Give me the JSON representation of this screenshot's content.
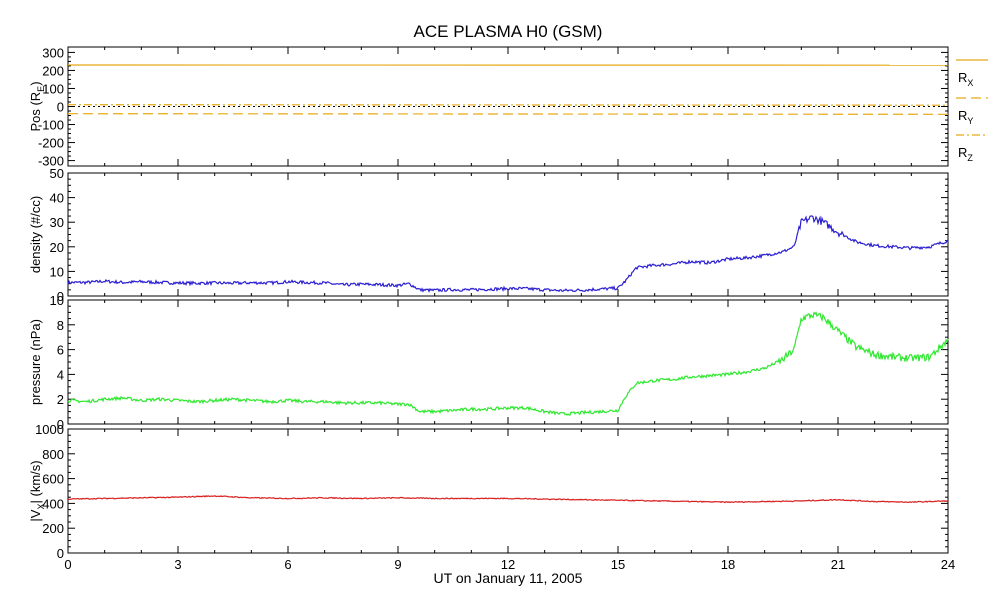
{
  "title": "ACE PLASMA H0 (GSM)",
  "x_axis": {
    "label": "UT on January 11, 2005",
    "ticks": [
      0,
      3,
      6,
      9,
      12,
      15,
      18,
      21,
      24
    ],
    "range": [
      0,
      24
    ]
  },
  "chart_data": [
    {
      "type": "line",
      "ylabel": "Pos (R",
      "ylabel_sub": "E",
      "ylabel_tail": ")",
      "ylim": [
        -330,
        330
      ],
      "yticks": [
        300,
        200,
        100,
        0,
        -100,
        -200,
        -300
      ],
      "zero_line": true,
      "series": [
        {
          "name": "R",
          "sub": "X",
          "color": "#e6a817",
          "style": "solid",
          "x": [
            0,
            24
          ],
          "y": [
            230,
            229
          ]
        },
        {
          "name": "R",
          "sub": "Y",
          "color": "#e6a817",
          "style": "dashed",
          "x": [
            0,
            24
          ],
          "y": [
            -40,
            -43
          ]
        },
        {
          "name": "R",
          "sub": "Z",
          "color": "#e6a817",
          "style": "dashdot",
          "x": [
            0,
            24
          ],
          "y": [
            10,
            7
          ]
        }
      ]
    },
    {
      "type": "line",
      "ylabel": "density (#/cc)",
      "ylim": [
        0,
        50
      ],
      "yticks": [
        50,
        40,
        30,
        20,
        10,
        0
      ],
      "series": [
        {
          "name": "",
          "color": "#2b1fd0",
          "x": [
            0,
            0.5,
            1,
            1.5,
            2,
            2.5,
            3,
            3.5,
            4,
            4.5,
            5,
            5.5,
            6,
            6.5,
            7,
            7.5,
            8,
            8.5,
            9,
            9.3,
            9.6,
            10,
            10.5,
            11,
            11.5,
            12,
            12.5,
            13,
            13.5,
            14,
            14.5,
            15,
            15.2,
            15.5,
            16,
            16.5,
            17,
            17.5,
            18,
            18.5,
            19,
            19.5,
            19.8,
            20,
            20.3,
            20.6,
            21,
            21.5,
            22,
            22.5,
            23,
            23.5,
            24
          ],
          "y": [
            5.5,
            5.5,
            6,
            5.5,
            5.8,
            5.5,
            5.3,
            5.2,
            5.3,
            5.2,
            5.4,
            5.3,
            5.8,
            5.5,
            5.3,
            4.5,
            4.8,
            4.6,
            4.3,
            5,
            2.5,
            2.3,
            2.6,
            2.5,
            2.8,
            3,
            3,
            2.5,
            2.2,
            2.4,
            2.8,
            3.2,
            6,
            11.5,
            12.5,
            13,
            14,
            13.5,
            15,
            15.5,
            16.5,
            18,
            20,
            30,
            32,
            30,
            26,
            22,
            20.5,
            20,
            19.5,
            20,
            22.5
          ]
        }
      ]
    },
    {
      "type": "line",
      "ylabel": "pressure (nPa)",
      "ylim": [
        0,
        10
      ],
      "yticks": [
        10,
        8,
        6,
        4,
        2,
        0
      ],
      "series": [
        {
          "name": "",
          "color": "#2ee82e",
          "x": [
            0,
            0.5,
            1,
            1.5,
            2,
            2.5,
            3,
            3.5,
            4,
            4.5,
            5,
            5.5,
            6,
            6.5,
            7,
            7.5,
            8,
            8.5,
            9,
            9.3,
            9.6,
            10,
            10.5,
            11,
            11.5,
            12,
            12.5,
            13,
            13.5,
            14,
            14.5,
            15,
            15.2,
            15.5,
            16,
            16.5,
            17,
            17.5,
            18,
            18.5,
            19,
            19.5,
            19.8,
            20,
            20.3,
            20.6,
            21,
            21.5,
            22,
            22.5,
            23,
            23.5,
            24
          ],
          "y": [
            1.9,
            1.8,
            2,
            2.1,
            1.9,
            2,
            1.9,
            1.8,
            1.9,
            2,
            1.9,
            1.8,
            1.9,
            1.8,
            1.8,
            1.7,
            1.7,
            1.7,
            1.6,
            1.6,
            1,
            1,
            1.1,
            1.2,
            1.2,
            1.3,
            1.3,
            1,
            0.8,
            0.9,
            1,
            1.1,
            2.2,
            3.3,
            3.5,
            3.6,
            3.8,
            3.9,
            4,
            4.2,
            4.5,
            5.2,
            6,
            8.5,
            8.8,
            8.6,
            7.5,
            6.2,
            5.6,
            5.4,
            5.3,
            5.4,
            6.8
          ]
        }
      ]
    },
    {
      "type": "line",
      "ylabel": "|V",
      "ylabel_sub": "X",
      "ylabel_tail": "| (km/s)",
      "ylim": [
        0,
        1000
      ],
      "yticks": [
        1000,
        800,
        600,
        400,
        200,
        0
      ],
      "series": [
        {
          "name": "",
          "color": "#d82020",
          "x": [
            0,
            1,
            2,
            3,
            4,
            5,
            6,
            7,
            8,
            9,
            10,
            11,
            12,
            13,
            14,
            15,
            16,
            17,
            18,
            19,
            20,
            21,
            22,
            23,
            24
          ],
          "y": [
            435,
            440,
            445,
            450,
            460,
            445,
            440,
            445,
            440,
            445,
            440,
            440,
            440,
            435,
            430,
            425,
            420,
            415,
            410,
            415,
            420,
            430,
            415,
            410,
            420
          ]
        }
      ]
    }
  ]
}
